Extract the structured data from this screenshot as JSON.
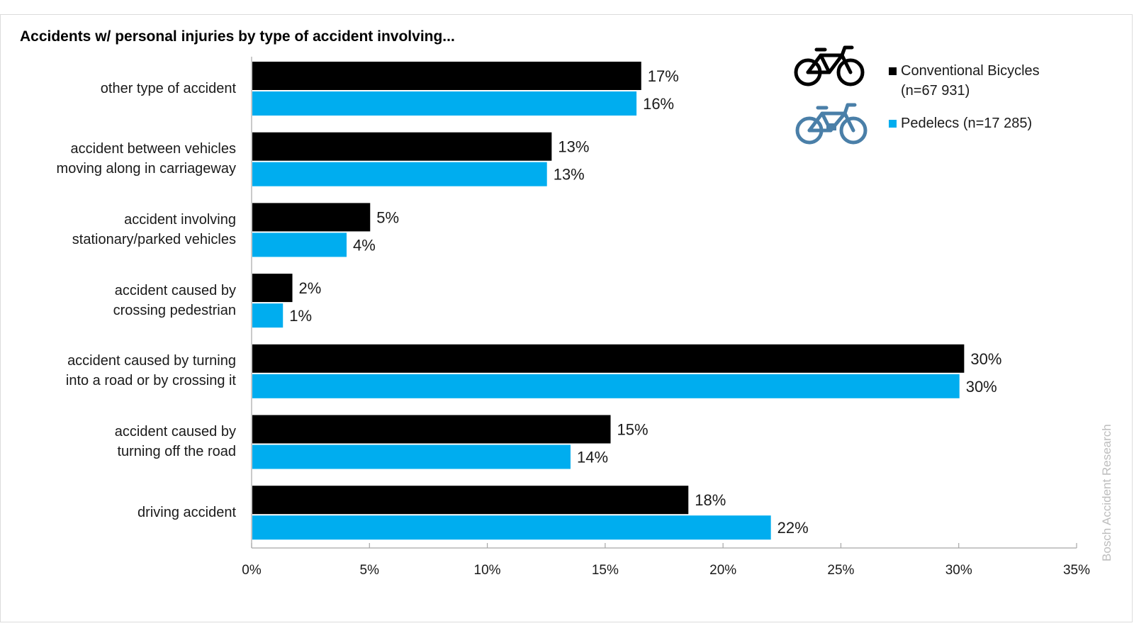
{
  "title": "Accidents w/ personal injuries by type of accident involving...",
  "watermark": "Bosch Accident Research",
  "colors": {
    "conventional": "#000000",
    "pedelec": "#00adef",
    "pedelec_icon": "#4a7fa8",
    "axis": "#a6a6a6"
  },
  "legend": {
    "conventional_line1": "Conventional Bicycles",
    "conventional_line2": "(n=67 931)",
    "pedelec": "Pedelecs (n=17 285)"
  },
  "categories": [
    {
      "line1": "other type of accident",
      "line2": ""
    },
    {
      "line1": "accident between vehicles",
      "line2": "moving along in carriageway"
    },
    {
      "line1": "accident involving",
      "line2": "stationary/parked vehicles"
    },
    {
      "line1": "accident caused by",
      "line2": "crossing pedestrian"
    },
    {
      "line1": "accident caused by turning",
      "line2": "into a road or by crossing it"
    },
    {
      "line1": "accident caused by",
      "line2": "turning off the road"
    },
    {
      "line1": "driving accident",
      "line2": ""
    }
  ],
  "chart_data": {
    "type": "bar",
    "orientation": "horizontal",
    "title": "Accidents w/ personal injuries by type of accident involving...",
    "categories": [
      "other type of accident",
      "accident between vehicles moving along in carriageway",
      "accident involving stationary/parked vehicles",
      "accident caused by crossing pedestrian",
      "accident caused by turning into a road or by crossing it",
      "accident caused by turning off the road",
      "driving accident"
    ],
    "series": [
      {
        "name": "Conventional Bicycles (n=67 931)",
        "values": [
          16.5,
          12.7,
          5.0,
          1.7,
          30.2,
          15.2,
          18.5
        ],
        "labels": [
          "17%",
          "13%",
          "5%",
          "2%",
          "30%",
          "15%",
          "18%"
        ]
      },
      {
        "name": "Pedelecs (n=17 285)",
        "values": [
          16.3,
          12.5,
          4.0,
          1.3,
          30.0,
          13.5,
          22.0
        ],
        "labels": [
          "16%",
          "13%",
          "4%",
          "1%",
          "30%",
          "14%",
          "22%"
        ]
      }
    ],
    "xlim": [
      0,
      35
    ],
    "xticks": [
      0,
      5,
      10,
      15,
      20,
      25,
      30,
      35
    ],
    "xtick_labels": [
      "0%",
      "5%",
      "10%",
      "15%",
      "20%",
      "25%",
      "30%",
      "35%"
    ],
    "grid": false,
    "legend_position": "top-right"
  }
}
